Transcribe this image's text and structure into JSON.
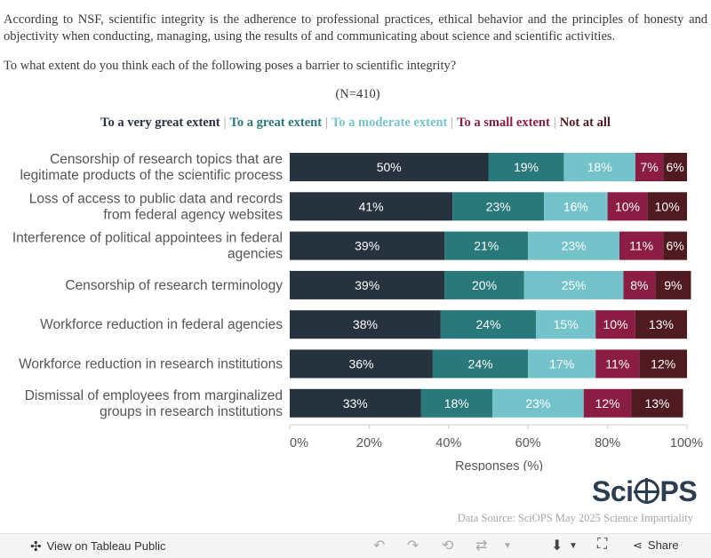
{
  "intro": "According to NSF, scientific integrity is the adherence to professional practices, ethical behavior and the principles of honesty and objectivity when conducting, managing, using the results of and communicating about science and scientific activities.",
  "question": "To what extent do you think each of the following poses a barrier to scientific integrity?",
  "n_label": "(N=410)",
  "legend": [
    {
      "label": "To a very great extent",
      "color": "#27323f"
    },
    {
      "label": "To a great extent",
      "color": "#29787a"
    },
    {
      "label": "To a moderate extent",
      "color": "#74c3cb"
    },
    {
      "label": "To a small extent",
      "color": "#8b1d44"
    },
    {
      "label": "Not at all",
      "color": "#4f1a20"
    }
  ],
  "legend_sep": "|",
  "chart_data": {
    "type": "bar",
    "orientation": "horizontal",
    "stacked": true,
    "categories": [
      [
        "Censorship of research topics that are",
        "legitimate products of the scientific process"
      ],
      [
        "Loss of access to public data and records",
        "from federal agency websites"
      ],
      [
        "Interference of political appointees in federal",
        "agencies"
      ],
      [
        "Censorship of research terminology"
      ],
      [
        "Workforce reduction in federal agencies"
      ],
      [
        "Workforce reduction in research institutions"
      ],
      [
        "Dismissal of employees from marginalized",
        "groups in research institutions"
      ]
    ],
    "series": [
      {
        "name": "To a very great extent",
        "color": "#27323f",
        "text_color": "#ffffff",
        "values": [
          50,
          41,
          39,
          39,
          38,
          36,
          33
        ]
      },
      {
        "name": "To a great extent",
        "color": "#29787a",
        "text_color": "#ffffff",
        "values": [
          19,
          23,
          21,
          20,
          24,
          24,
          18
        ]
      },
      {
        "name": "To a moderate extent",
        "color": "#74c3cb",
        "text_color": "#ffffff",
        "values": [
          18,
          16,
          23,
          25,
          15,
          17,
          23
        ]
      },
      {
        "name": "To a small extent",
        "color": "#8b1d44",
        "text_color": "#ffffff",
        "values": [
          7,
          10,
          11,
          8,
          10,
          11,
          12
        ]
      },
      {
        "name": "Not at all",
        "color": "#4f1a20",
        "text_color": "#ffffff",
        "values": [
          6,
          10,
          6,
          9,
          13,
          12,
          13
        ]
      }
    ],
    "xlim": [
      0,
      100
    ],
    "xticks": [
      "0%",
      "20%",
      "40%",
      "60%",
      "80%",
      "100%"
    ],
    "xlabel": "Responses (%)",
    "value_suffix": "%"
  },
  "watermark": {
    "pre": "Sci",
    "post": "PS"
  },
  "source": "Data Source: SciOPS May 2025 Science Impartiality",
  "toolbar": {
    "view_label": "View on Tableau Public",
    "share_label": "Share"
  }
}
